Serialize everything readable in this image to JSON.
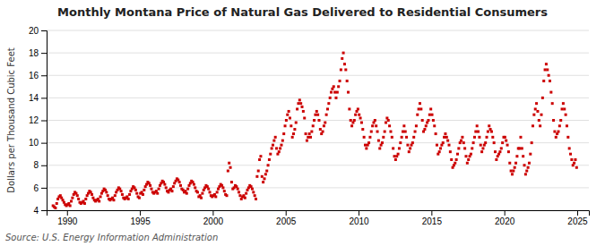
{
  "chart_data": {
    "type": "scatter",
    "title": "Monthly Montana Price of Natural Gas Delivered to Residential Consumers",
    "ylabel": "Dollars per Thousand Cubic Feet",
    "source": "Source: U.S. Energy Information Administration",
    "color": "#cc0000",
    "marker": "square",
    "grid": true,
    "xlim": [
      1988.6,
      2025.8
    ],
    "ylim": [
      4,
      20
    ],
    "xticks": [
      1990,
      1995,
      2000,
      2005,
      2010,
      2015,
      2020,
      2025
    ],
    "yticks": [
      4,
      6,
      8,
      10,
      12,
      14,
      16,
      18,
      20
    ],
    "x": [
      1989.0416666666667,
      1989.125,
      1989.2083333333333,
      1989.2916666666667,
      1989.375,
      1989.4583333333333,
      1989.5416666666667,
      1989.625,
      1989.7083333333333,
      1989.7916666666667,
      1989.875,
      1989.9583333333333,
      1990.0416666666667,
      1990.125,
      1990.2083333333333,
      1990.2916666666667,
      1990.375,
      1990.4583333333333,
      1990.5416666666667,
      1990.625,
      1990.7083333333333,
      1990.7916666666667,
      1990.875,
      1990.9583333333333,
      1991.0416666666667,
      1991.125,
      1991.2083333333333,
      1991.2916666666667,
      1991.375,
      1991.4583333333333,
      1991.5416666666667,
      1991.625,
      1991.7083333333333,
      1991.7916666666667,
      1991.875,
      1991.9583333333333,
      1992.0416666666667,
      1992.125,
      1992.2083333333333,
      1992.2916666666667,
      1992.375,
      1992.4583333333333,
      1992.5416666666667,
      1992.625,
      1992.7083333333333,
      1992.7916666666667,
      1992.875,
      1992.9583333333333,
      1993.0416666666667,
      1993.125,
      1993.2083333333333,
      1993.2916666666667,
      1993.375,
      1993.4583333333333,
      1993.5416666666667,
      1993.625,
      1993.7083333333333,
      1993.7916666666667,
      1993.875,
      1993.9583333333333,
      1994.0416666666667,
      1994.125,
      1994.2083333333333,
      1994.2916666666667,
      1994.375,
      1994.4583333333333,
      1994.5416666666667,
      1994.625,
      1994.7083333333333,
      1994.7916666666667,
      1994.875,
      1994.9583333333333,
      1995.0416666666667,
      1995.125,
      1995.2083333333333,
      1995.2916666666667,
      1995.375,
      1995.4583333333333,
      1995.5416666666667,
      1995.625,
      1995.7083333333333,
      1995.7916666666667,
      1995.875,
      1995.9583333333333,
      1996.0416666666667,
      1996.125,
      1996.2083333333333,
      1996.2916666666667,
      1996.375,
      1996.4583333333333,
      1996.5416666666667,
      1996.625,
      1996.7083333333333,
      1996.7916666666667,
      1996.875,
      1996.9583333333333,
      1997.0416666666667,
      1997.125,
      1997.2083333333333,
      1997.2916666666667,
      1997.375,
      1997.4583333333333,
      1997.5416666666667,
      1997.625,
      1997.7083333333333,
      1997.7916666666667,
      1997.875,
      1997.9583333333333,
      1998.0416666666667,
      1998.125,
      1998.2083333333333,
      1998.2916666666667,
      1998.375,
      1998.4583333333333,
      1998.5416666666667,
      1998.625,
      1998.7083333333333,
      1998.7916666666667,
      1998.875,
      1998.9583333333333,
      1999.0416666666667,
      1999.125,
      1999.2083333333333,
      1999.2916666666667,
      1999.375,
      1999.4583333333333,
      1999.5416666666667,
      1999.625,
      1999.7083333333333,
      1999.7916666666667,
      1999.875,
      1999.9583333333333,
      2000.0416666666667,
      2000.125,
      2000.2083333333333,
      2000.2916666666667,
      2000.375,
      2000.4583333333333,
      2000.5416666666667,
      2000.625,
      2000.7083333333333,
      2000.7916666666667,
      2000.875,
      2000.9583333333333,
      2001.0416666666667,
      2001.125,
      2001.2083333333333,
      2001.2916666666667,
      2001.375,
      2001.4583333333333,
      2001.5416666666667,
      2001.625,
      2001.7083333333333,
      2001.7916666666667,
      2001.875,
      2001.9583333333333,
      2002.0416666666667,
      2002.125,
      2002.2083333333333,
      2002.2916666666667,
      2002.375,
      2002.4583333333333,
      2002.5416666666667,
      2002.625,
      2002.7083333333333,
      2002.7916666666667,
      2002.875,
      2002.9583333333333,
      2003.0416666666667,
      2003.125,
      2003.2083333333333,
      2003.2916666666667,
      2003.375,
      2003.4583333333333,
      2003.5416666666667,
      2003.625,
      2003.7083333333333,
      2003.7916666666667,
      2003.875,
      2003.9583333333333,
      2004.0416666666667,
      2004.125,
      2004.2083333333333,
      2004.2916666666667,
      2004.375,
      2004.4583333333333,
      2004.5416666666667,
      2004.625,
      2004.7083333333333,
      2004.7916666666667,
      2004.875,
      2004.9583333333333,
      2005.0416666666667,
      2005.125,
      2005.2083333333333,
      2005.2916666666667,
      2005.375,
      2005.4583333333333,
      2005.5416666666667,
      2005.625,
      2005.7083333333333,
      2005.7916666666667,
      2005.875,
      2005.9583333333333,
      2006.0416666666667,
      2006.125,
      2006.2083333333333,
      2006.2916666666667,
      2006.375,
      2006.4583333333333,
      2006.5416666666667,
      2006.625,
      2006.7083333333333,
      2006.7916666666667,
      2006.875,
      2006.9583333333333,
      2007.0416666666667,
      2007.125,
      2007.2083333333333,
      2007.2916666666667,
      2007.375,
      2007.4583333333333,
      2007.5416666666667,
      2007.625,
      2007.7083333333333,
      2007.7916666666667,
      2007.875,
      2007.9583333333333,
      2008.0416666666667,
      2008.125,
      2008.2083333333333,
      2008.2916666666667,
      2008.375,
      2008.4583333333333,
      2008.5416666666667,
      2008.625,
      2008.7083333333333,
      2008.7916666666667,
      2008.875,
      2008.9583333333333,
      2009.0416666666667,
      2009.125,
      2009.2083333333333,
      2009.2916666666667,
      2009.375,
      2009.4583333333333,
      2009.5416666666667,
      2009.625,
      2009.7083333333333,
      2009.7916666666667,
      2009.875,
      2009.9583333333333,
      2010.0416666666667,
      2010.125,
      2010.2083333333333,
      2010.2916666666667,
      2010.375,
      2010.4583333333333,
      2010.5416666666667,
      2010.625,
      2010.7083333333333,
      2010.7916666666667,
      2010.875,
      2010.9583333333333,
      2011.0416666666667,
      2011.125,
      2011.2083333333333,
      2011.2916666666667,
      2011.375,
      2011.4583333333333,
      2011.5416666666667,
      2011.625,
      2011.7083333333333,
      2011.7916666666667,
      2011.875,
      2011.9583333333333,
      2012.0416666666667,
      2012.125,
      2012.2083333333333,
      2012.2916666666667,
      2012.375,
      2012.4583333333333,
      2012.5416666666667,
      2012.625,
      2012.7083333333333,
      2012.7916666666667,
      2012.875,
      2012.9583333333333,
      2013.0416666666667,
      2013.125,
      2013.2083333333333,
      2013.2916666666667,
      2013.375,
      2013.4583333333333,
      2013.5416666666667,
      2013.625,
      2013.7083333333333,
      2013.7916666666667,
      2013.875,
      2013.9583333333333,
      2014.0416666666667,
      2014.125,
      2014.2083333333333,
      2014.2916666666667,
      2014.375,
      2014.4583333333333,
      2014.5416666666667,
      2014.625,
      2014.7083333333333,
      2014.7916666666667,
      2014.875,
      2014.9583333333333,
      2015.0416666666667,
      2015.125,
      2015.2083333333333,
      2015.2916666666667,
      2015.375,
      2015.4583333333333,
      2015.5416666666667,
      2015.625,
      2015.7083333333333,
      2015.7916666666667,
      2015.875,
      2015.9583333333333,
      2016.0416666666667,
      2016.125,
      2016.2083333333333,
      2016.2916666666667,
      2016.375,
      2016.4583333333333,
      2016.5416666666667,
      2016.625,
      2016.7083333333333,
      2016.7916666666667,
      2016.875,
      2016.9583333333333,
      2017.0416666666667,
      2017.125,
      2017.2083333333333,
      2017.2916666666667,
      2017.375,
      2017.4583333333333,
      2017.5416666666667,
      2017.625,
      2017.7083333333333,
      2017.7916666666667,
      2017.875,
      2017.9583333333333,
      2018.0416666666667,
      2018.125,
      2018.2083333333333,
      2018.2916666666667,
      2018.375,
      2018.4583333333333,
      2018.5416666666667,
      2018.625,
      2018.7083333333333,
      2018.7916666666667,
      2018.875,
      2018.9583333333333,
      2019.0416666666667,
      2019.125,
      2019.2083333333333,
      2019.2916666666667,
      2019.375,
      2019.4583333333333,
      2019.5416666666667,
      2019.625,
      2019.7083333333333,
      2019.7916666666667,
      2019.875,
      2019.9583333333333,
      2020.0416666666667,
      2020.125,
      2020.2083333333333,
      2020.2916666666667,
      2020.375,
      2020.4583333333333,
      2020.5416666666667,
      2020.625,
      2020.7083333333333,
      2020.7916666666667,
      2020.875,
      2020.9583333333333,
      2021.0416666666667,
      2021.125,
      2021.2083333333333,
      2021.2916666666667,
      2021.375,
      2021.4583333333333,
      2021.5416666666667,
      2021.625,
      2021.7083333333333,
      2021.7916666666667,
      2021.875,
      2021.9583333333333,
      2022.0416666666667,
      2022.125,
      2022.2083333333333,
      2022.2916666666667,
      2022.375,
      2022.4583333333333,
      2022.5416666666667,
      2022.625,
      2022.7083333333333,
      2022.7916666666667,
      2022.875,
      2022.9583333333333,
      2023.0416666666667,
      2023.125,
      2023.2083333333333,
      2023.2916666666667,
      2023.375,
      2023.4583333333333,
      2023.5416666666667,
      2023.625,
      2023.7083333333333,
      2023.7916666666667,
      2023.875,
      2023.9583333333333,
      2024.0416666666667,
      2024.125,
      2024.2083333333333,
      2024.2916666666667,
      2024.375,
      2024.4583333333333,
      2024.5416666666667,
      2024.625,
      2024.7083333333333,
      2024.7916666666667,
      2024.875,
      2024.9583333333333
    ],
    "values": [
      4.4,
      4.3,
      4.2,
      4.6,
      5.0,
      5.2,
      5.3,
      5.1,
      4.9,
      4.7,
      4.5,
      4.4,
      4.5,
      4.6,
      4.4,
      4.8,
      5.1,
      5.4,
      5.6,
      5.5,
      5.3,
      5.0,
      4.7,
      4.6,
      4.7,
      4.8,
      4.6,
      5.0,
      5.3,
      5.5,
      5.7,
      5.6,
      5.4,
      5.1,
      4.9,
      4.8,
      4.9,
      5.0,
      4.8,
      5.2,
      5.5,
      5.7,
      5.9,
      5.8,
      5.6,
      5.3,
      5.0,
      4.9,
      5.0,
      5.1,
      4.9,
      5.3,
      5.6,
      5.8,
      6.0,
      5.9,
      5.7,
      5.4,
      5.1,
      5.0,
      5.1,
      5.2,
      5.0,
      5.4,
      5.7,
      5.9,
      6.1,
      6.0,
      5.8,
      5.5,
      5.2,
      5.1,
      5.5,
      5.6,
      5.4,
      5.8,
      6.1,
      6.3,
      6.5,
      6.4,
      6.2,
      5.9,
      5.6,
      5.5,
      5.6,
      5.7,
      5.5,
      5.9,
      6.2,
      6.4,
      6.6,
      6.5,
      6.3,
      6.0,
      5.7,
      5.6,
      5.8,
      5.9,
      5.7,
      6.1,
      6.4,
      6.6,
      6.8,
      6.7,
      6.5,
      6.2,
      5.9,
      5.8,
      5.6,
      5.7,
      5.5,
      5.9,
      6.2,
      6.4,
      6.6,
      6.5,
      6.3,
      6.0,
      5.7,
      5.6,
      5.2,
      5.3,
      5.1,
      5.5,
      5.8,
      6.0,
      6.2,
      6.1,
      5.9,
      5.6,
      5.3,
      5.2,
      5.3,
      5.4,
      5.2,
      5.6,
      5.9,
      6.1,
      6.3,
      6.2,
      6.0,
      5.7,
      5.4,
      5.3,
      7.5,
      8.2,
      7.8,
      6.5,
      5.9,
      6.0,
      6.2,
      6.1,
      5.9,
      5.6,
      5.3,
      5.0,
      5.2,
      5.3,
      5.1,
      5.5,
      5.8,
      6.0,
      6.2,
      6.1,
      5.9,
      5.6,
      5.3,
      5.0,
      7.0,
      7.5,
      8.5,
      8.8,
      7.0,
      6.5,
      6.8,
      7.2,
      7.5,
      8.0,
      8.5,
      9.0,
      9.5,
      9.8,
      10.2,
      10.5,
      9.5,
      9.0,
      9.2,
      9.5,
      9.8,
      10.2,
      10.8,
      11.5,
      12.0,
      12.5,
      12.8,
      12.2,
      11.5,
      10.5,
      10.8,
      11.2,
      11.8,
      13.0,
      13.5,
      13.8,
      13.5,
      13.2,
      12.8,
      12.2,
      10.8,
      10.2,
      10.5,
      10.8,
      10.5,
      11.0,
      11.5,
      12.0,
      12.5,
      12.8,
      12.5,
      12.0,
      11.2,
      10.8,
      11.0,
      11.5,
      11.8,
      12.5,
      13.0,
      13.5,
      14.0,
      14.5,
      14.8,
      15.0,
      14.5,
      14.0,
      14.5,
      15.0,
      15.5,
      16.5,
      17.5,
      18.0,
      17.0,
      16.5,
      15.5,
      14.5,
      13.0,
      12.0,
      11.5,
      11.8,
      12.0,
      12.5,
      12.8,
      13.0,
      12.5,
      12.2,
      11.8,
      11.2,
      10.5,
      9.8,
      9.5,
      9.8,
      10.0,
      10.5,
      11.0,
      11.5,
      11.8,
      12.0,
      11.5,
      11.0,
      10.2,
      9.5,
      9.8,
      10.0,
      10.5,
      11.0,
      11.8,
      12.2,
      12.0,
      11.5,
      11.0,
      10.5,
      9.5,
      8.8,
      8.5,
      8.8,
      9.0,
      9.5,
      10.0,
      10.5,
      11.0,
      11.5,
      11.0,
      10.5,
      9.8,
      9.2,
      9.5,
      9.8,
      10.0,
      10.5,
      11.0,
      11.5,
      12.5,
      13.0,
      13.5,
      13.0,
      12.0,
      11.0,
      11.2,
      11.5,
      11.8,
      12.0,
      12.5,
      13.0,
      12.5,
      12.0,
      11.5,
      10.8,
      9.8,
      9.0,
      9.2,
      9.5,
      9.8,
      10.0,
      10.5,
      10.8,
      10.5,
      10.2,
      9.8,
      9.2,
      8.5,
      7.8,
      8.0,
      8.2,
      8.5,
      9.0,
      9.5,
      10.0,
      10.2,
      10.5,
      10.0,
      9.5,
      8.8,
      8.2,
      8.5,
      8.8,
      9.0,
      9.5,
      10.0,
      10.5,
      11.0,
      11.5,
      11.0,
      10.5,
      9.8,
      9.2,
      9.5,
      9.8,
      10.0,
      10.5,
      11.0,
      11.5,
      11.2,
      11.0,
      10.5,
      10.0,
      9.2,
      8.5,
      8.8,
      9.0,
      9.2,
      9.5,
      10.0,
      10.5,
      10.5,
      10.2,
      9.8,
      9.2,
      8.2,
      7.5,
      7.2,
      7.5,
      7.8,
      8.2,
      8.8,
      9.5,
      9.5,
      10.5,
      9.5,
      8.8,
      8.0,
      7.2,
      7.5,
      7.8,
      8.2,
      9.0,
      10.0,
      11.5,
      12.5,
      13.0,
      13.5,
      12.8,
      12.0,
      11.5,
      12.5,
      14.0,
      15.5,
      16.5,
      17.0,
      16.5,
      16.0,
      15.5,
      14.5,
      13.5,
      12.0,
      11.0,
      10.5,
      10.8,
      11.0,
      11.5,
      12.0,
      13.0,
      13.5,
      13.0,
      12.5,
      11.5,
      10.5,
      9.5,
      9.0,
      8.5,
      8.0,
      8.2,
      8.5,
      7.8
    ]
  }
}
